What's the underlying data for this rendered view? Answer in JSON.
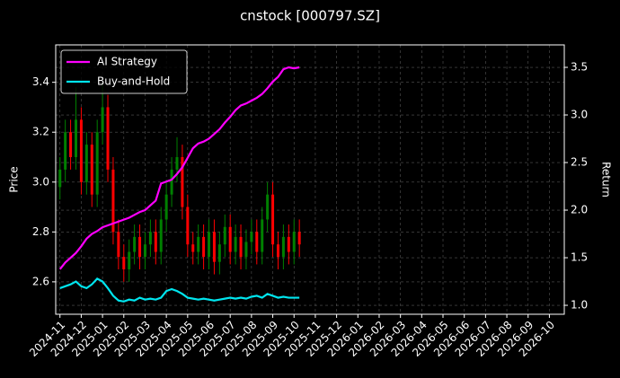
{
  "chart_data": {
    "type": "candlestick",
    "title": "cnstock [000797.SZ]",
    "y_label": "Price",
    "y2_label": "Return",
    "x": [
      0,
      0.25,
      0.5,
      0.75,
      1,
      1.25,
      1.5,
      1.75,
      2,
      2.25,
      2.5,
      2.75,
      3,
      3.25,
      3.5,
      3.75,
      4,
      4.25,
      4.5,
      4.75,
      5,
      5.25,
      5.5,
      5.75,
      6,
      6.25,
      6.5,
      6.75,
      7,
      7.25,
      7.5,
      7.75,
      8,
      8.25,
      8.5,
      8.75,
      9,
      9.25,
      9.5,
      9.75,
      10,
      10.25,
      10.5,
      10.75,
      11,
      11.25
    ],
    "open": [
      2.98,
      3.05,
      3.2,
      3.1,
      3.25,
      3.0,
      3.15,
      2.95,
      3.2,
      3.3,
      3.05,
      2.8,
      2.7,
      2.65,
      2.72,
      2.78,
      2.7,
      2.75,
      2.8,
      2.72,
      2.85,
      2.95,
      3.05,
      3.1,
      2.9,
      2.75,
      2.72,
      2.78,
      2.7,
      2.8,
      2.68,
      2.75,
      2.82,
      2.72,
      2.78,
      2.7,
      2.76,
      2.8,
      2.72,
      2.85,
      2.95,
      2.75,
      2.7,
      2.78,
      2.72,
      2.8
    ],
    "high": [
      3.1,
      3.25,
      3.25,
      3.38,
      3.3,
      3.2,
      3.2,
      3.25,
      3.4,
      3.35,
      3.1,
      2.85,
      2.75,
      2.77,
      2.83,
      2.83,
      2.8,
      2.85,
      2.85,
      2.9,
      3.0,
      3.1,
      3.18,
      3.15,
      2.95,
      2.8,
      2.83,
      2.83,
      2.85,
      2.85,
      2.8,
      2.87,
      2.87,
      2.83,
      2.83,
      2.81,
      2.85,
      2.85,
      2.9,
      3.0,
      3.0,
      2.8,
      2.83,
      2.83,
      2.85,
      2.85
    ],
    "low": [
      2.93,
      3.0,
      3.05,
      3.05,
      2.95,
      2.95,
      2.9,
      2.9,
      3.15,
      3.0,
      2.75,
      2.65,
      2.6,
      2.6,
      2.67,
      2.65,
      2.65,
      2.7,
      2.67,
      2.67,
      2.8,
      2.9,
      3.0,
      2.85,
      2.7,
      2.67,
      2.67,
      2.65,
      2.65,
      2.63,
      2.63,
      2.7,
      2.67,
      2.67,
      2.65,
      2.65,
      2.71,
      2.67,
      2.67,
      2.8,
      2.7,
      2.65,
      2.65,
      2.67,
      2.67,
      2.7
    ],
    "close": [
      3.05,
      3.2,
      3.1,
      3.25,
      3.0,
      3.15,
      2.95,
      3.2,
      3.3,
      3.05,
      2.8,
      2.7,
      2.65,
      2.72,
      2.78,
      2.7,
      2.75,
      2.8,
      2.72,
      2.85,
      2.95,
      3.05,
      3.1,
      2.9,
      2.75,
      2.72,
      2.78,
      2.7,
      2.8,
      2.68,
      2.75,
      2.82,
      2.72,
      2.78,
      2.7,
      2.76,
      2.8,
      2.72,
      2.85,
      2.95,
      2.75,
      2.7,
      2.78,
      2.72,
      2.8,
      2.75
    ],
    "up_color": "#008000",
    "down_color": "#ff0000",
    "series": [
      {
        "name": "AI Strategy",
        "color": "#ff00ff",
        "axis": "y2",
        "values": [
          1.38,
          1.45,
          1.5,
          1.55,
          1.62,
          1.7,
          1.75,
          1.78,
          1.82,
          1.84,
          1.86,
          1.88,
          1.9,
          1.92,
          1.95,
          1.98,
          2.0,
          2.05,
          2.1,
          2.28,
          2.3,
          2.32,
          2.38,
          2.45,
          2.55,
          2.65,
          2.7,
          2.72,
          2.75,
          2.8,
          2.85,
          2.92,
          2.98,
          3.05,
          3.1,
          3.12,
          3.15,
          3.18,
          3.22,
          3.28,
          3.35,
          3.4,
          3.48,
          3.5,
          3.49,
          3.5
        ]
      },
      {
        "name": "Buy-and-Hold",
        "color": "#00e5ee",
        "axis": "y2",
        "values": [
          1.18,
          1.2,
          1.22,
          1.25,
          1.2,
          1.18,
          1.22,
          1.28,
          1.25,
          1.18,
          1.1,
          1.05,
          1.04,
          1.06,
          1.05,
          1.08,
          1.06,
          1.07,
          1.06,
          1.08,
          1.15,
          1.17,
          1.15,
          1.12,
          1.08,
          1.07,
          1.06,
          1.07,
          1.06,
          1.05,
          1.06,
          1.07,
          1.08,
          1.07,
          1.08,
          1.07,
          1.09,
          1.1,
          1.08,
          1.12,
          1.1,
          1.08,
          1.09,
          1.08,
          1.08,
          1.08
        ]
      }
    ],
    "xlim": [
      -0.2,
      23.7
    ],
    "xticks": [
      {
        "value": 0,
        "label": "2024-11"
      },
      {
        "value": 1,
        "label": "2024-12"
      },
      {
        "value": 2,
        "label": "2025-01"
      },
      {
        "value": 3,
        "label": "2025-02"
      },
      {
        "value": 4,
        "label": "2025-03"
      },
      {
        "value": 5,
        "label": "2025-04"
      },
      {
        "value": 6,
        "label": "2025-05"
      },
      {
        "value": 7,
        "label": "2025-06"
      },
      {
        "value": 8,
        "label": "2025-07"
      },
      {
        "value": 9,
        "label": "2025-08"
      },
      {
        "value": 10,
        "label": "2025-09"
      },
      {
        "value": 11,
        "label": "2025-10"
      },
      {
        "value": 12,
        "label": "2025-11"
      },
      {
        "value": 13,
        "label": "2025-12"
      },
      {
        "value": 14,
        "label": "2026-01"
      },
      {
        "value": 15,
        "label": "2026-02"
      },
      {
        "value": 16,
        "label": "2026-03"
      },
      {
        "value": 17,
        "label": "2026-04"
      },
      {
        "value": 18,
        "label": "2026-05"
      },
      {
        "value": 19,
        "label": "2026-06"
      },
      {
        "value": 20,
        "label": "2026-07"
      },
      {
        "value": 21,
        "label": "2026-08"
      },
      {
        "value": 22,
        "label": "2026-09"
      },
      {
        "value": 23,
        "label": "2026-10"
      }
    ],
    "ylim": [
      2.47,
      3.55
    ],
    "yticks": [
      2.6,
      2.8,
      {
        "value": 3.0,
        "label": "3.0"
      },
      3.2,
      3.4
    ],
    "y2lim": [
      0.906,
      3.736
    ],
    "y2ticks": [
      {
        "value": 1.0,
        "label": "1.0"
      },
      1.5,
      {
        "value": 2.0,
        "label": "2.0"
      },
      2.5,
      {
        "value": 3.0,
        "label": "3.0"
      },
      3.5
    ],
    "grid": true,
    "legend": "upper-left"
  }
}
